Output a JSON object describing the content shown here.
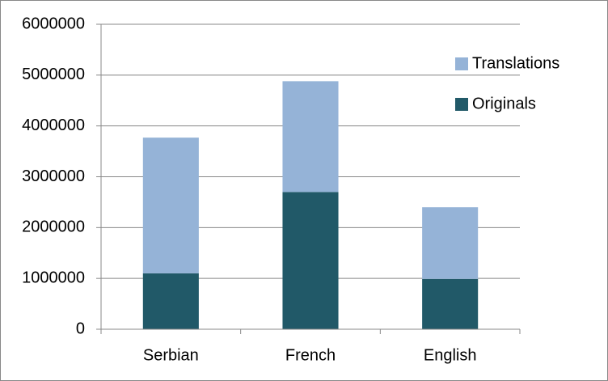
{
  "chart_data": {
    "type": "stacked_bar",
    "categories": [
      "Serbian",
      "French",
      "English"
    ],
    "series": [
      {
        "name": "Originals",
        "color": "#215968",
        "values": [
          1100000,
          2700000,
          990000
        ]
      },
      {
        "name": "Translations",
        "color": "#95b3d7",
        "values": [
          2670000,
          2180000,
          1410000
        ]
      }
    ],
    "ylim": [
      0,
      6000000
    ],
    "yticks": [
      0,
      1000000,
      2000000,
      3000000,
      4000000,
      5000000,
      6000000
    ],
    "grid": true,
    "legend": "right"
  }
}
